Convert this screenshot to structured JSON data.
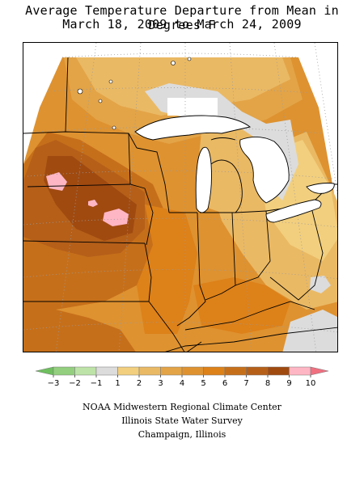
{
  "title": {
    "line1": "Average Temperature Departure from Mean in Degrees F",
    "line2": "March 18, 2009 to March 24, 2009"
  },
  "legend": {
    "ticks": [
      "−3",
      "−2",
      "−1",
      "1",
      "2",
      "3",
      "4",
      "5",
      "6",
      "7",
      "8",
      "9",
      "10"
    ],
    "bins": [
      {
        "range": "below -3",
        "color": "#6fbf5f"
      },
      {
        "range": "-3 to -2",
        "color": "#93cf7e"
      },
      {
        "range": "-2 to -1",
        "color": "#bde3a8"
      },
      {
        "range": "-1 to 1",
        "color": "#dcdcdc"
      },
      {
        "range": "1 to 2",
        "color": "#f2cf7e"
      },
      {
        "range": "2 to 3",
        "color": "#eab964"
      },
      {
        "range": "3 to 4",
        "color": "#e3a447"
      },
      {
        "range": "4 to 5",
        "color": "#de9230"
      },
      {
        "range": "5 to 6",
        "color": "#dd8119"
      },
      {
        "range": "6 to 7",
        "color": "#c66f1a"
      },
      {
        "range": "7 to 8",
        "color": "#b55f19"
      },
      {
        "range": "8 to 9",
        "color": "#a04a10"
      },
      {
        "range": "9 to 10",
        "color": "#ffb6c4"
      },
      {
        "range": "above 10",
        "color": "#f07080"
      }
    ]
  },
  "footer": {
    "line1": "NOAA Midwestern Regional Climate Center",
    "line2": "Illinois State Water Survey",
    "line3": "Champaign, Illinois"
  },
  "map": {
    "region": "Midwestern United States",
    "shading_levels": [
      "-1 to 1",
      "1 to 2",
      "2 to 3",
      "3 to 4",
      "4 to 5",
      "5 to 6",
      "6 to 7",
      "7 to 8",
      "8 to 9",
      "9 to 10"
    ]
  },
  "colors": {
    "neutral": "#dcdcdc",
    "lake": "#ffffff",
    "border": "#000000",
    "graticule": "#9a9a9a"
  }
}
